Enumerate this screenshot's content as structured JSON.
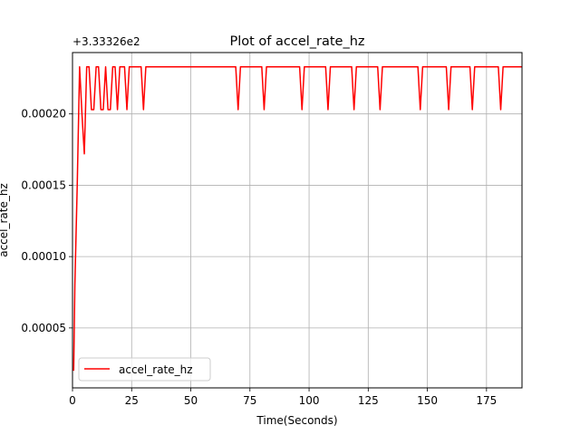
{
  "chart_data": {
    "type": "line",
    "title": "Plot of accel_rate_hz",
    "xlabel": "Time(Seconds)",
    "ylabel": "accel_rate_hz",
    "offset_label": "+3.33326e2",
    "xlim": [
      0,
      190
    ],
    "ylim": [
      8e-06,
      0.000243
    ],
    "xticks": [
      0,
      25,
      50,
      75,
      100,
      125,
      150,
      175
    ],
    "xtick_labels": [
      "0",
      "25",
      "50",
      "75",
      "100",
      "125",
      "150",
      "175"
    ],
    "yticks": [
      5e-05,
      0.0001,
      0.00015,
      0.0002
    ],
    "ytick_labels": [
      "0.00005",
      "0.00010",
      "0.00015",
      "0.00020"
    ],
    "grid": true,
    "legend": {
      "position": "lower-left",
      "entries": [
        "accel_rate_hz"
      ]
    },
    "series": [
      {
        "name": "accel_rate_hz",
        "color": "#ff0000",
        "x": [
          0.5,
          1,
          2,
          3,
          4,
          5,
          6,
          7,
          8,
          9,
          10,
          11,
          12,
          13,
          14,
          15,
          16,
          17,
          18,
          19,
          20,
          21,
          22,
          23,
          24,
          25,
          29,
          30,
          31,
          32,
          69,
          70,
          71,
          72,
          80,
          81,
          82,
          83,
          96,
          97,
          98,
          99,
          107,
          108,
          109,
          110,
          118,
          119,
          120,
          121,
          129,
          130,
          131,
          132,
          146,
          147,
          148,
          149,
          158,
          159,
          160,
          161,
          168,
          169,
          170,
          171,
          180,
          181,
          182,
          183,
          190
        ],
        "y": [
          2e-05,
          8e-05,
          0.00015,
          0.000233,
          0.0002,
          0.000172,
          0.000233,
          0.000233,
          0.000203,
          0.000203,
          0.000233,
          0.000233,
          0.000203,
          0.000203,
          0.000233,
          0.000203,
          0.000203,
          0.000233,
          0.000233,
          0.000203,
          0.000233,
          0.000233,
          0.000233,
          0.000203,
          0.000233,
          0.000233,
          0.000233,
          0.000203,
          0.000233,
          0.000233,
          0.000233,
          0.000203,
          0.000233,
          0.000233,
          0.000233,
          0.000203,
          0.000233,
          0.000233,
          0.000233,
          0.000203,
          0.000233,
          0.000233,
          0.000233,
          0.000203,
          0.000233,
          0.000233,
          0.000233,
          0.000203,
          0.000233,
          0.000233,
          0.000233,
          0.000203,
          0.000233,
          0.000233,
          0.000233,
          0.000203,
          0.000233,
          0.000233,
          0.000233,
          0.000203,
          0.000233,
          0.000233,
          0.000233,
          0.000203,
          0.000233,
          0.000233,
          0.000233,
          0.000203,
          0.000233,
          0.000233,
          0.000233
        ]
      }
    ]
  }
}
